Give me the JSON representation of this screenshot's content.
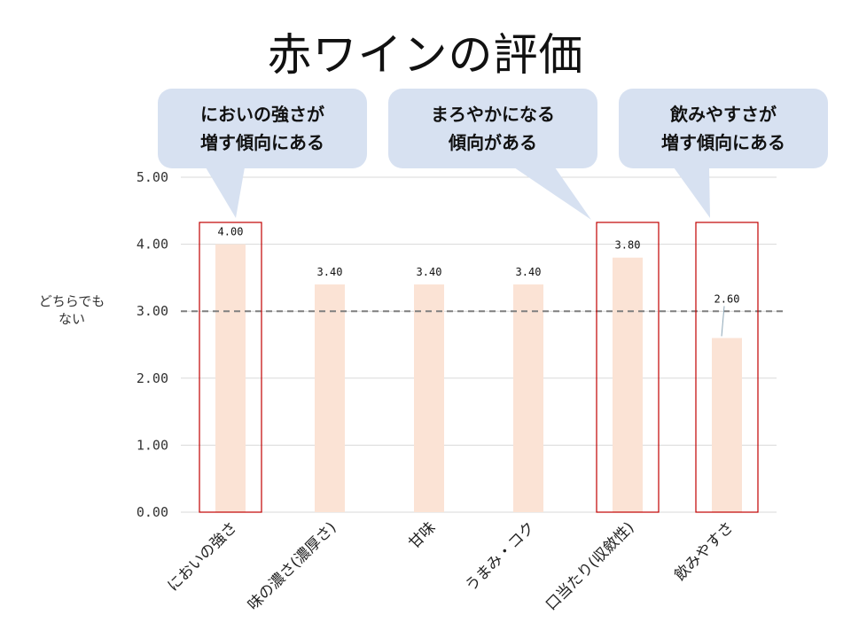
{
  "title": "赤ワインの評価",
  "neutral_label": [
    "どちらでも",
    "ない"
  ],
  "callouts": [
    {
      "lines": [
        "においの強さが",
        "増す傾向にある"
      ]
    },
    {
      "lines": [
        "まろやかになる",
        "傾向がある"
      ]
    },
    {
      "lines": [
        "飲みやすさが",
        "増す傾向にある"
      ]
    }
  ],
  "colors": {
    "bar": "#fbe3d5",
    "highlight_box": "#c00000",
    "gridline": "#d9d9d9",
    "reference_line": "#7f7f7f",
    "callout_fill": "#d7e1f1"
  },
  "chart_data": {
    "type": "bar",
    "title": "赤ワインの評価",
    "categories": [
      "においの強さ",
      "味の濃さ(濃厚さ)",
      "甘味",
      "うまみ・コク",
      "口当たり(収斂性)",
      "飲みやすさ"
    ],
    "values": [
      4.0,
      3.4,
      3.4,
      3.4,
      3.8,
      2.6
    ],
    "data_labels": [
      "4.00",
      "3.40",
      "3.40",
      "3.40",
      "3.80",
      "2.60"
    ],
    "ylim": [
      0,
      5
    ],
    "yticks": [
      "0.00",
      "1.00",
      "2.00",
      "3.00",
      "4.00",
      "5.00"
    ],
    "reference_line": {
      "y": 3.0,
      "style": "dashed"
    },
    "highlighted_categories": [
      "においの強さ",
      "口当たり(収斂性)",
      "飲みやすさ"
    ],
    "grid": true,
    "legend": "none",
    "xlabel": "",
    "ylabel": ""
  }
}
